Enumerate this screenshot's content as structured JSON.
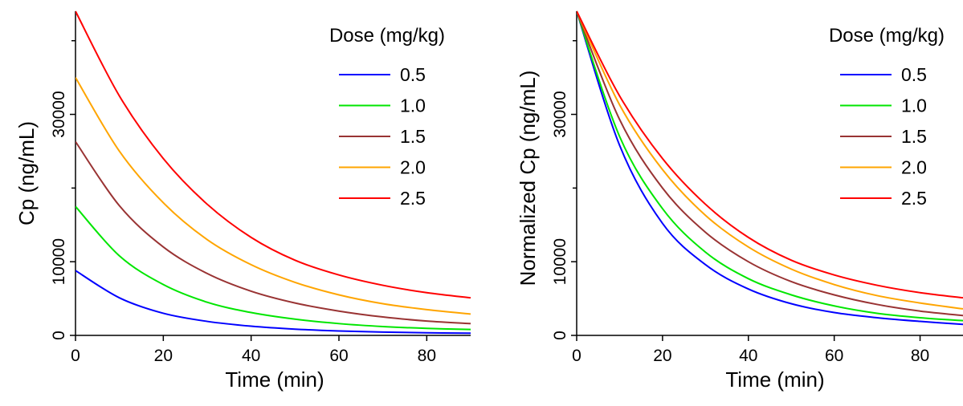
{
  "chart_data": [
    {
      "type": "line",
      "xlabel": "Time (min)",
      "ylabel": "Cp (ng/mL)",
      "xlim": [
        0,
        90
      ],
      "ylim": [
        0,
        44000
      ],
      "xticks": [
        0,
        20,
        40,
        60,
        80
      ],
      "yticks": [
        0,
        10000,
        30000
      ],
      "ytick_labels": [
        "0",
        "10000",
        "30000"
      ],
      "legend_title": "Dose (mg/kg)",
      "legend_position": "top-right",
      "grid": false,
      "x": [
        0,
        10,
        20,
        30,
        40,
        50,
        60,
        70,
        80,
        90
      ],
      "series": [
        {
          "name": "0.5",
          "color": "#0000ff",
          "values": [
            8800,
            5100,
            3000,
            1900,
            1250,
            850,
            600,
            450,
            350,
            300
          ]
        },
        {
          "name": "1.0",
          "color": "#00e600",
          "values": [
            17500,
            10800,
            6900,
            4500,
            3100,
            2200,
            1600,
            1200,
            950,
            800
          ]
        },
        {
          "name": "1.5",
          "color": "#993333",
          "values": [
            26300,
            17600,
            12000,
            8400,
            6000,
            4400,
            3300,
            2500,
            1950,
            1600
          ]
        },
        {
          "name": "2.0",
          "color": "#ffa500",
          "values": [
            35000,
            25000,
            18000,
            13000,
            9600,
            7200,
            5500,
            4300,
            3500,
            2900
          ]
        },
        {
          "name": "2.5",
          "color": "#ff0000",
          "values": [
            44000,
            32500,
            24000,
            17800,
            13300,
            10200,
            8200,
            6800,
            5800,
            5100
          ]
        }
      ]
    },
    {
      "type": "line",
      "xlabel": "Time (min)",
      "ylabel": "Normalized Cp (ng/mL)",
      "xlim": [
        0,
        90
      ],
      "ylim": [
        0,
        44000
      ],
      "xticks": [
        0,
        20,
        40,
        60,
        80
      ],
      "yticks": [
        0,
        10000,
        30000
      ],
      "ytick_labels": [
        "0",
        "10000",
        "30000"
      ],
      "legend_title": "Dose (mg/kg)",
      "legend_position": "top-right",
      "grid": false,
      "x": [
        0,
        10,
        20,
        30,
        40,
        50,
        60,
        70,
        80,
        90
      ],
      "series": [
        {
          "name": "0.5",
          "color": "#0000ff",
          "values": [
            44000,
            25800,
            15200,
            9600,
            6300,
            4300,
            3100,
            2400,
            1900,
            1500
          ]
        },
        {
          "name": "1.0",
          "color": "#00e600",
          "values": [
            44000,
            27000,
            17200,
            11300,
            7700,
            5500,
            4000,
            3000,
            2400,
            2000
          ]
        },
        {
          "name": "1.5",
          "color": "#993333",
          "values": [
            44000,
            29300,
            20000,
            14000,
            10000,
            7300,
            5500,
            4200,
            3300,
            2700
          ]
        },
        {
          "name": "2.0",
          "color": "#ffa500",
          "values": [
            44000,
            31300,
            22500,
            16300,
            12000,
            9000,
            6900,
            5400,
            4400,
            3600
          ]
        },
        {
          "name": "2.5",
          "color": "#ff0000",
          "values": [
            44000,
            32500,
            24000,
            17800,
            13300,
            10200,
            8200,
            6800,
            5800,
            5100
          ]
        }
      ]
    }
  ]
}
